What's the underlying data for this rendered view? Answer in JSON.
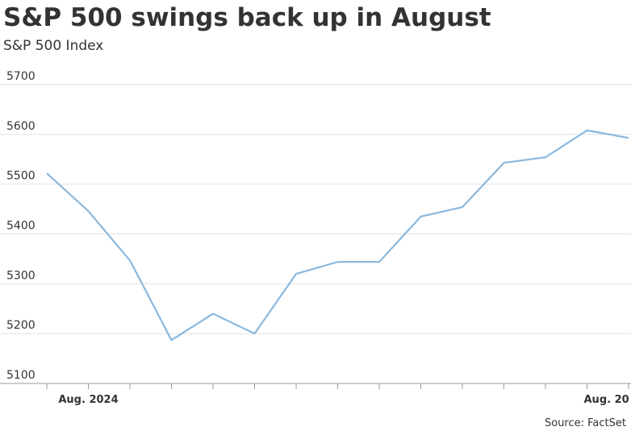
{
  "chart_data": {
    "type": "line",
    "title": "S&P 500 swings back up in August",
    "subtitle": "S&P 500 Index",
    "source": "Source: FactSet",
    "categories": [
      null,
      "Aug. 2024",
      null,
      null,
      null,
      null,
      null,
      null,
      null,
      null,
      null,
      null,
      null,
      "Aug. 20",
      null
    ],
    "series": [
      {
        "name": "S&P 500",
        "color": "#8ab8de",
        "values": [
          5522,
          5446,
          5347,
          5187,
          5240,
          5200,
          5320,
          5344,
          5344,
          5435,
          5454,
          5543,
          5554,
          5608,
          5593
        ]
      }
    ],
    "ylim": [
      5100,
      5700
    ],
    "yticks": [
      5100,
      5200,
      5300,
      5400,
      5500,
      5600,
      5700
    ],
    "grid": true
  }
}
